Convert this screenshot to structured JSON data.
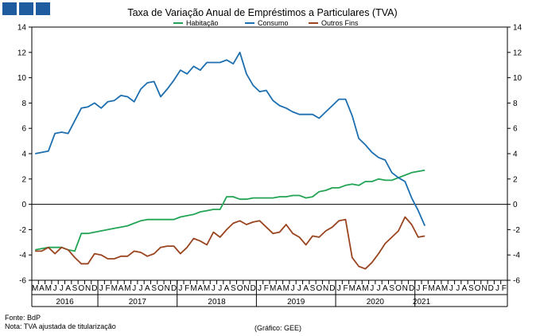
{
  "colors": {
    "logo": "#1f5b9f",
    "habitacao": "#23a455",
    "consumo": "#1d6fb0",
    "outros": "#9a4520"
  },
  "footer": {
    "fonte": "Fonte: BdP",
    "nota": "Nota: TVA ajustada de titularização",
    "grafico": "(Gráfico: GEE)"
  },
  "chart_data": {
    "type": "line",
    "title": "Taxa de Variação Anual de Empréstimos a Particulares (TVA)",
    "legend_position": "top",
    "ylim": [
      -6,
      14
    ],
    "yticks": [
      -6,
      -4,
      -2,
      0,
      2,
      4,
      6,
      8,
      10,
      12,
      14
    ],
    "y_axis_both_sides": true,
    "grid": false,
    "month_labels": [
      "M",
      "A",
      "M",
      "J",
      "J",
      "A",
      "S",
      "O",
      "N",
      "D",
      "J",
      "F",
      "M",
      "A",
      "M",
      "J",
      "J",
      "A",
      "S",
      "O",
      "N",
      "D",
      "J",
      "F",
      "M",
      "A",
      "M",
      "J",
      "J",
      "A",
      "S",
      "O",
      "N",
      "D",
      "J",
      "F",
      "M",
      "A",
      "M",
      "J",
      "J",
      "A",
      "S",
      "O",
      "N",
      "D",
      "J",
      "F",
      "M",
      "A",
      "M",
      "J",
      "J",
      "A",
      "S",
      "O",
      "N",
      "D",
      "J",
      "F",
      "M",
      "A",
      "M",
      "J",
      "J",
      "A",
      "S",
      "O",
      "N",
      "D",
      "J",
      "F"
    ],
    "years": [
      {
        "label": "2016",
        "start": 0,
        "end": 9
      },
      {
        "label": "2017",
        "start": 10,
        "end": 21
      },
      {
        "label": "2018",
        "start": 22,
        "end": 33
      },
      {
        "label": "2019",
        "start": 34,
        "end": 45
      },
      {
        "label": "2020",
        "start": 46,
        "end": 57
      },
      {
        "label": "2021",
        "start": 58,
        "end": 59
      }
    ],
    "series": [
      {
        "name": "Habitação",
        "color": "#23a455",
        "values": [
          -3.6,
          -3.5,
          -3.4,
          -3.4,
          -3.4,
          -3.6,
          -3.7,
          -2.3,
          -2.3,
          -2.2,
          -2.1,
          -2.0,
          -1.9,
          -1.8,
          -1.7,
          -1.5,
          -1.3,
          -1.2,
          -1.2,
          -1.2,
          -1.2,
          -1.2,
          -1.0,
          -0.9,
          -0.8,
          -0.6,
          -0.5,
          -0.4,
          -0.4,
          0.6,
          0.6,
          0.4,
          0.4,
          0.5,
          0.5,
          0.5,
          0.5,
          0.6,
          0.6,
          0.7,
          0.7,
          0.5,
          0.6,
          1.0,
          1.1,
          1.3,
          1.3,
          1.5,
          1.6,
          1.5,
          1.8,
          1.8,
          2.0,
          1.9,
          1.9,
          2.1,
          2.3,
          2.5,
          2.6,
          2.7
        ]
      },
      {
        "name": "Consumo",
        "color": "#1d6fb0",
        "values": [
          4.0,
          4.1,
          4.2,
          5.6,
          5.7,
          5.6,
          6.6,
          7.6,
          7.7,
          8.0,
          7.6,
          8.1,
          8.2,
          8.6,
          8.5,
          8.1,
          9.1,
          9.6,
          9.7,
          8.5,
          9.1,
          9.8,
          10.6,
          10.3,
          10.9,
          10.6,
          11.2,
          11.2,
          11.2,
          11.4,
          11.1,
          12.0,
          10.3,
          9.4,
          8.9,
          9.0,
          8.2,
          7.8,
          7.6,
          7.3,
          7.1,
          7.1,
          7.1,
          6.8,
          7.3,
          7.8,
          8.3,
          8.3,
          7.0,
          5.2,
          4.7,
          4.1,
          3.7,
          3.5,
          2.5,
          2.1,
          1.8,
          0.5,
          -0.5,
          -1.7
        ]
      },
      {
        "name": "Outros Fins",
        "color": "#9a4520",
        "values": [
          -3.7,
          -3.7,
          -3.4,
          -3.9,
          -3.4,
          -3.6,
          -4.2,
          -4.7,
          -4.7,
          -3.9,
          -4.0,
          -4.3,
          -4.3,
          -4.1,
          -4.1,
          -3.7,
          -3.8,
          -4.1,
          -3.9,
          -3.4,
          -3.3,
          -3.3,
          -3.9,
          -3.4,
          -2.7,
          -2.9,
          -3.2,
          -2.2,
          -2.6,
          -2.0,
          -1.5,
          -1.3,
          -1.6,
          -1.4,
          -1.3,
          -1.8,
          -2.3,
          -2.2,
          -1.6,
          -2.3,
          -2.6,
          -3.2,
          -2.5,
          -2.6,
          -2.1,
          -1.8,
          -1.3,
          -1.2,
          -4.2,
          -4.9,
          -5.1,
          -4.6,
          -3.9,
          -3.1,
          -2.6,
          -2.1,
          -1.0,
          -1.6,
          -2.6,
          -2.5
        ]
      }
    ]
  }
}
